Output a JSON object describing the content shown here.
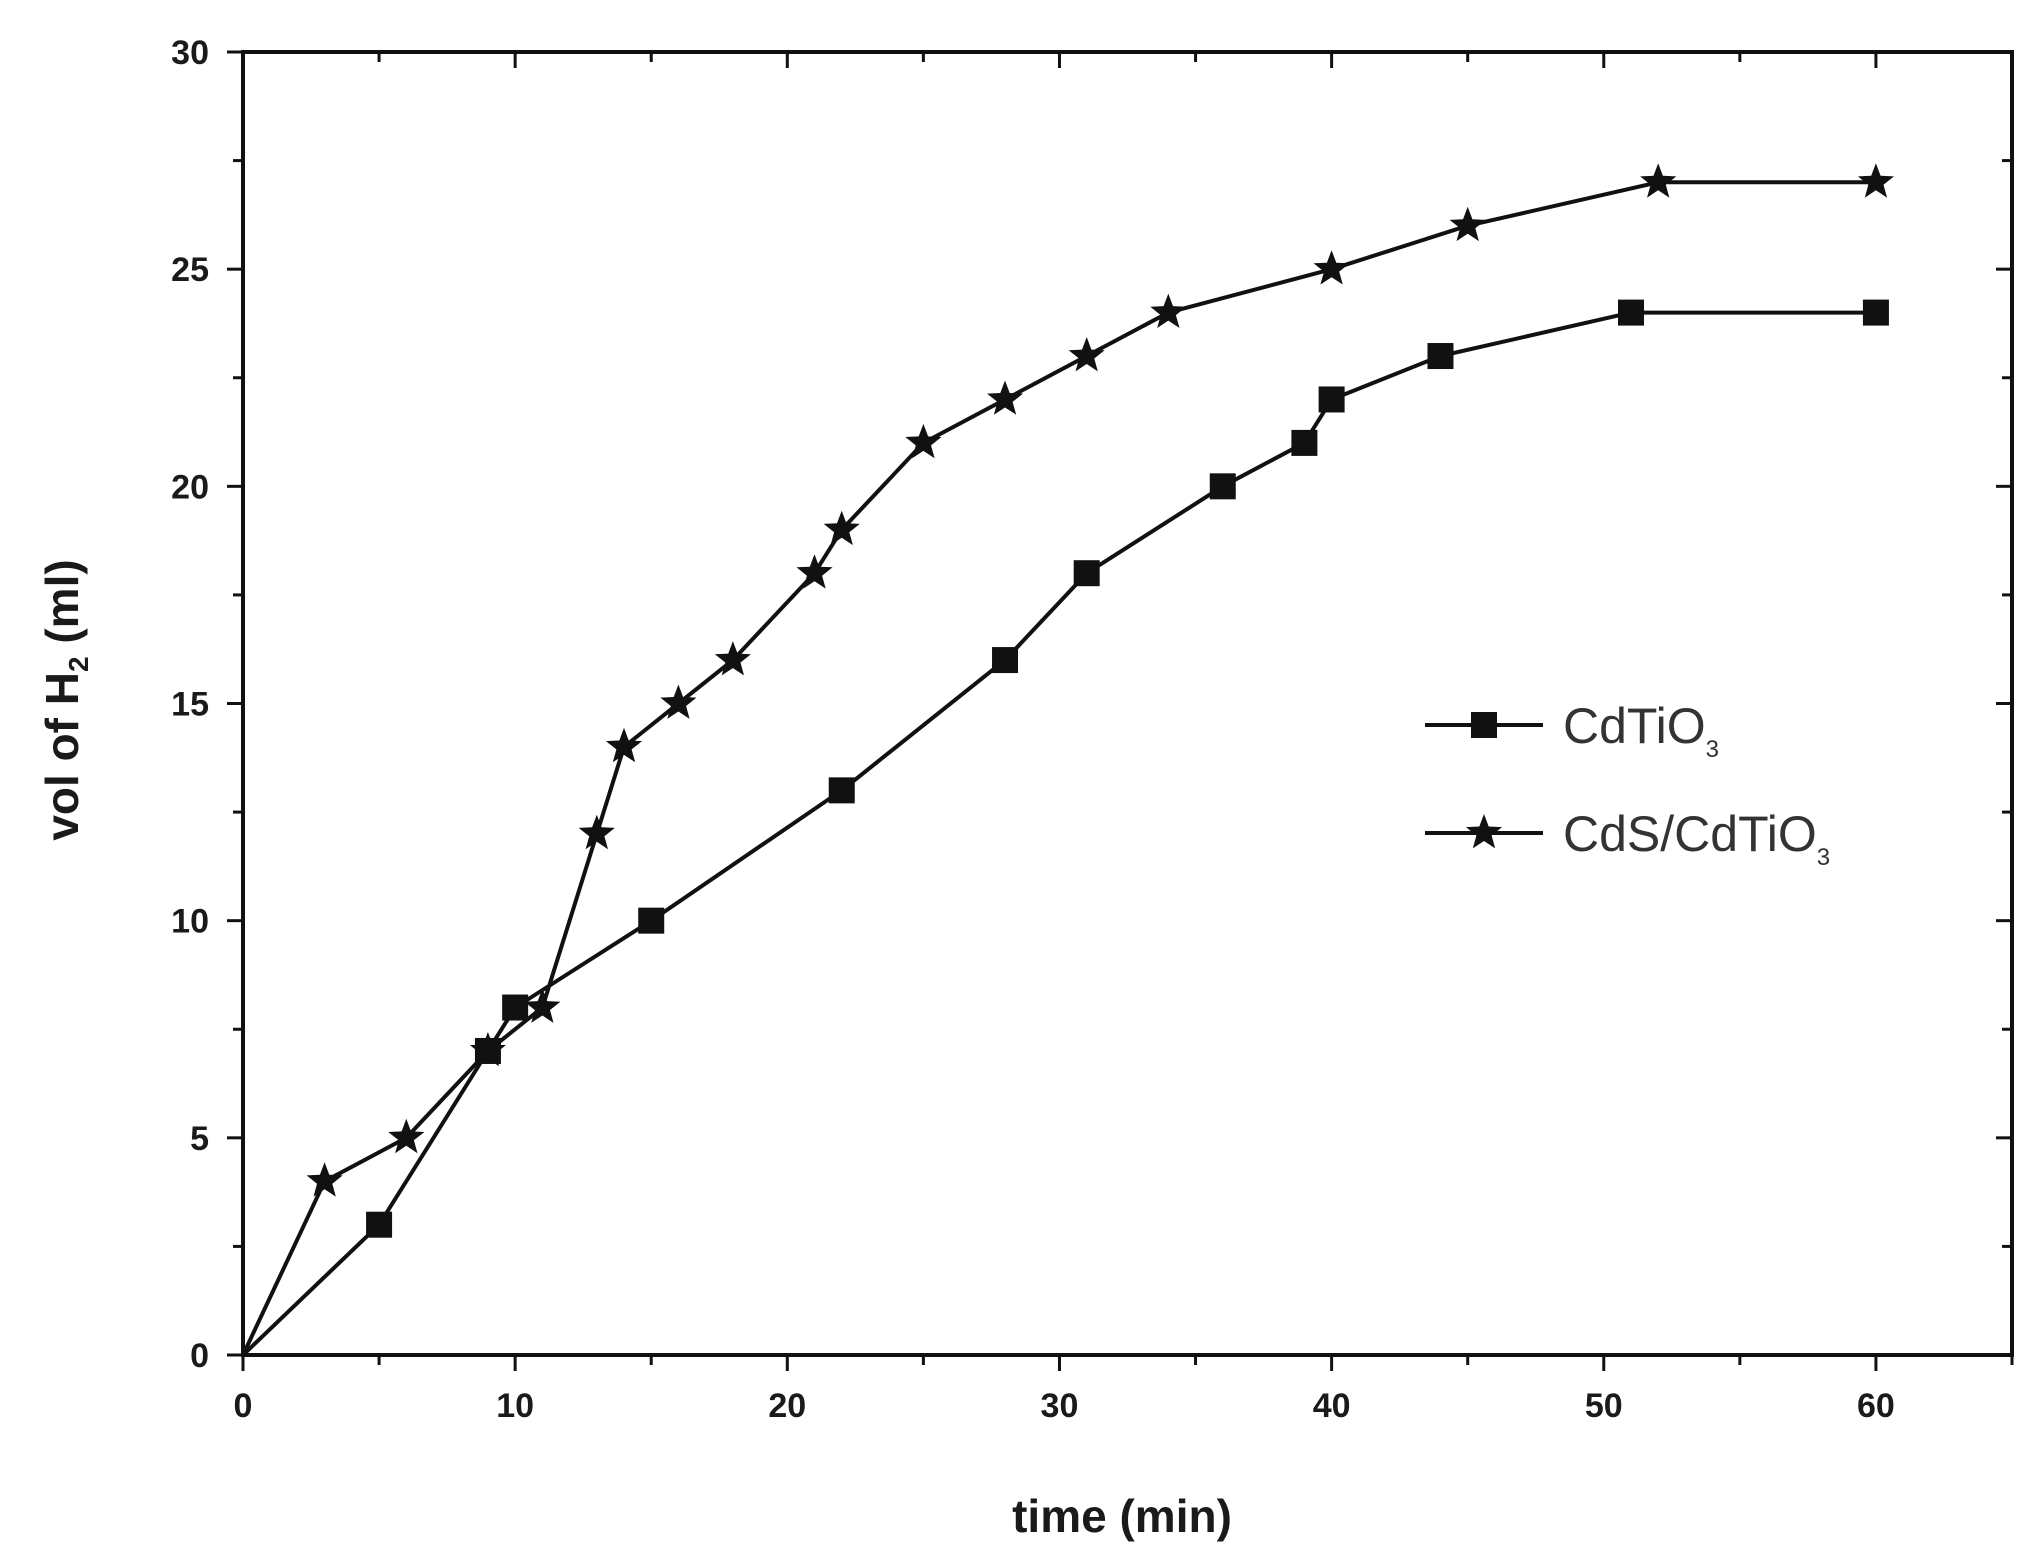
{
  "chart_data": {
    "type": "line",
    "xlabel": "time (min)",
    "ylabel_main": "vol of H",
    "ylabel_sub": "2",
    "ylabel_unit": "(ml)",
    "xlim": [
      0,
      65
    ],
    "ylim": [
      0,
      30
    ],
    "xticks": [
      0,
      10,
      20,
      30,
      40,
      50,
      60
    ],
    "yticks": [
      0,
      5,
      10,
      15,
      20,
      25,
      30
    ],
    "grid": false,
    "legend_position": "right-middle",
    "series": [
      {
        "name": "CdTiO",
        "name_sub": "3",
        "marker": "square",
        "color": "#111111",
        "x": [
          0,
          5,
          9,
          10,
          15,
          22,
          28,
          31,
          36,
          39,
          40,
          44,
          51,
          60
        ],
        "y": [
          0,
          3,
          7,
          8,
          10,
          13,
          16,
          18,
          20,
          21,
          22,
          23,
          24,
          24
        ]
      },
      {
        "name": "CdS/CdTiO",
        "name_sub": "3",
        "marker": "star",
        "color": "#111111",
        "x": [
          0,
          3,
          6,
          9,
          11,
          13,
          14,
          16,
          18,
          21,
          22,
          25,
          28,
          31,
          34,
          40,
          45,
          52,
          60
        ],
        "y": [
          0,
          4,
          5,
          7,
          8,
          12,
          14,
          15,
          16,
          18,
          19,
          21,
          22,
          23,
          24,
          25,
          26,
          27,
          27
        ]
      }
    ]
  }
}
